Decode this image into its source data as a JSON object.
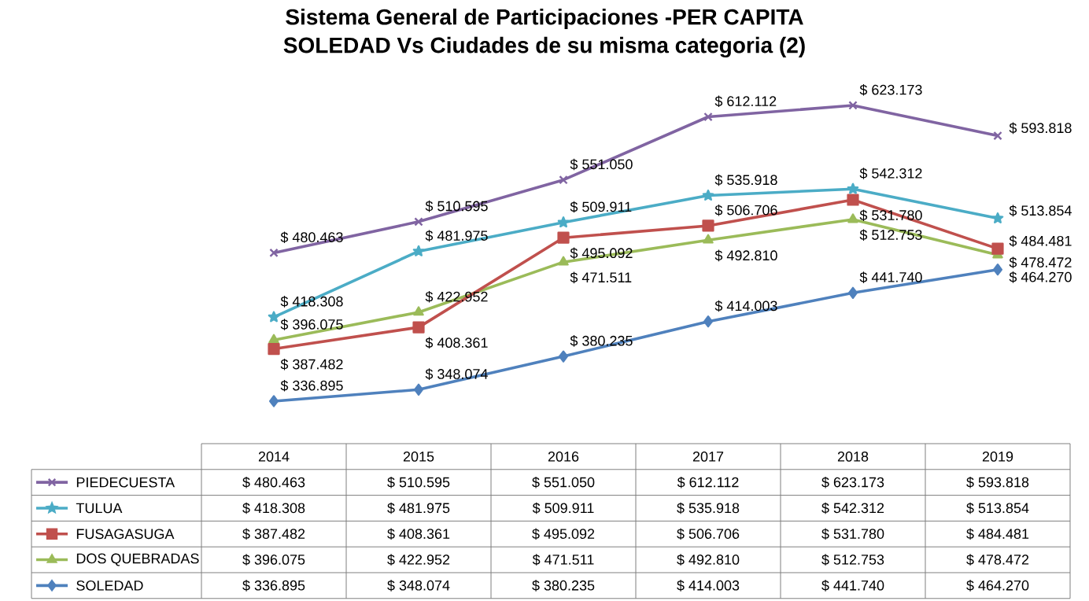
{
  "chart_data": {
    "type": "line",
    "title": "Sistema General de Participaciones -PER CAPITA",
    "subtitle": "SOLEDAD Vs Ciudades de su misma categoria (2)",
    "categories": [
      "2014",
      "2015",
      "2016",
      "2017",
      "2018",
      "2019"
    ],
    "legend": "bottom",
    "line_style": "solid",
    "series": [
      {
        "name": "SOLEDAD",
        "color": "#4f81bd",
        "marker": "diamond",
        "values": [
          336895,
          348074,
          380235,
          414003,
          441740,
          464270
        ],
        "value_labels": [
          "$ 336.895",
          "$ 348.074",
          "$ 380.235",
          "$ 414.003",
          "$ 441.740",
          "$ 464.270"
        ]
      },
      {
        "name": "DOS QUEBRADAS",
        "color": "#9bbb59",
        "marker": "triangle",
        "values": [
          396075,
          422952,
          471511,
          492810,
          512753,
          478472
        ],
        "value_labels": [
          "$ 396.075",
          "$ 422.952",
          "$ 471.511",
          "$ 492.810",
          "$ 512.753",
          "$ 478.472"
        ]
      },
      {
        "name": "FUSAGASUGA",
        "color": "#c0504d",
        "marker": "square",
        "values": [
          387482,
          408361,
          495092,
          506706,
          531780,
          484481
        ],
        "value_labels": [
          "$ 387.482",
          "$ 408.361",
          "$ 495.092",
          "$ 506.706",
          "$ 531.780",
          "$ 484.481"
        ]
      },
      {
        "name": "TULUA",
        "color": "#4bacc6",
        "marker": "star",
        "values": [
          418308,
          481975,
          509911,
          535918,
          542312,
          513854
        ],
        "value_labels": [
          "$ 418.308",
          "$ 481.975",
          "$ 509.911",
          "$ 535.918",
          "$ 542.312",
          "$ 513.854"
        ]
      },
      {
        "name": "PIEDECUESTA",
        "color": "#8064a2",
        "marker": "cross",
        "values": [
          480463,
          510595,
          551050,
          612112,
          623173,
          593818
        ],
        "value_labels": [
          "$ 480.463",
          "$ 510.595",
          "$ 551.050",
          "$ 612.112",
          "$ 623.173",
          "$ 593.818"
        ]
      }
    ]
  }
}
